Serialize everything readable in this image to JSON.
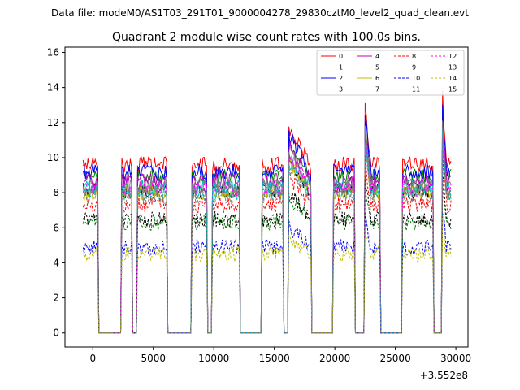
{
  "chart_data": {
    "type": "line",
    "suptitle": "Data file: modeM0/AS1T03_291T01_9000004278_29830cztM0_level2_quad_clean.evt",
    "title": "Quadrant 2 module wise count rates with 100.0s bins.",
    "xlabel": "",
    "ylabel": "",
    "x_offset_label": "+3.552e8",
    "xlim": [
      -2300,
      31000
    ],
    "ylim": [
      -0.8,
      16.3
    ],
    "x_ticks": [
      0,
      5000,
      10000,
      15000,
      20000,
      25000,
      30000
    ],
    "x_tick_labels": [
      "0",
      "5000",
      "10000",
      "15000",
      "20000",
      "25000",
      "30000"
    ],
    "y_ticks": [
      0,
      2,
      4,
      6,
      8,
      10,
      12,
      14,
      16
    ],
    "y_tick_labels": [
      "0",
      "2",
      "4",
      "6",
      "8",
      "10",
      "12",
      "14",
      "16"
    ],
    "legend_position": "top-right",
    "bin_seconds": 100,
    "segments": [
      {
        "start": -800,
        "end": 400
      },
      {
        "start": 2400,
        "end": 3200
      },
      {
        "start": 3700,
        "end": 6100
      },
      {
        "start": 8200,
        "end": 9400
      },
      {
        "start": 9900,
        "end": 12100
      },
      {
        "start": 14000,
        "end": 15700
      },
      {
        "start": 16200,
        "end": 18000
      },
      {
        "start": 19900,
        "end": 21600
      },
      {
        "start": 22500,
        "end": 23700
      },
      {
        "start": 25600,
        "end": 28100
      },
      {
        "start": 28900,
        "end": 29600
      }
    ],
    "series": [
      {
        "name": "0",
        "color": "#ff0000",
        "dash": "solid",
        "level": 9.6
      },
      {
        "name": "1",
        "color": "#008000",
        "dash": "solid",
        "level": 8.9
      },
      {
        "name": "2",
        "color": "#0000ff",
        "dash": "solid",
        "level": 9.2
      },
      {
        "name": "3",
        "color": "#000000",
        "dash": "solid",
        "level": 8.1
      },
      {
        "name": "4",
        "color": "#bf00bf",
        "dash": "solid",
        "level": 8.7
      },
      {
        "name": "5",
        "color": "#00bfbf",
        "dash": "solid",
        "level": 8.3
      },
      {
        "name": "6",
        "color": "#bfbf00",
        "dash": "solid",
        "level": 8.0
      },
      {
        "name": "7",
        "color": "#808080",
        "dash": "solid",
        "level": 8.4
      },
      {
        "name": "8",
        "color": "#ff0000",
        "dash": "dashed",
        "level": 7.3
      },
      {
        "name": "9",
        "color": "#008000",
        "dash": "dashed",
        "level": 6.3
      },
      {
        "name": "10",
        "color": "#0000ff",
        "dash": "dashed",
        "level": 4.9
      },
      {
        "name": "11",
        "color": "#000000",
        "dash": "dashed",
        "level": 6.5
      },
      {
        "name": "12",
        "color": "#ff00ff",
        "dash": "dashed",
        "level": 8.2
      },
      {
        "name": "13",
        "color": "#00bfbf",
        "dash": "dashed",
        "level": 8.0
      },
      {
        "name": "14",
        "color": "#bfbf00",
        "dash": "dashed",
        "level": 4.5
      },
      {
        "name": "15",
        "color": "#808080",
        "dash": "dashed",
        "level": 7.8
      }
    ]
  }
}
